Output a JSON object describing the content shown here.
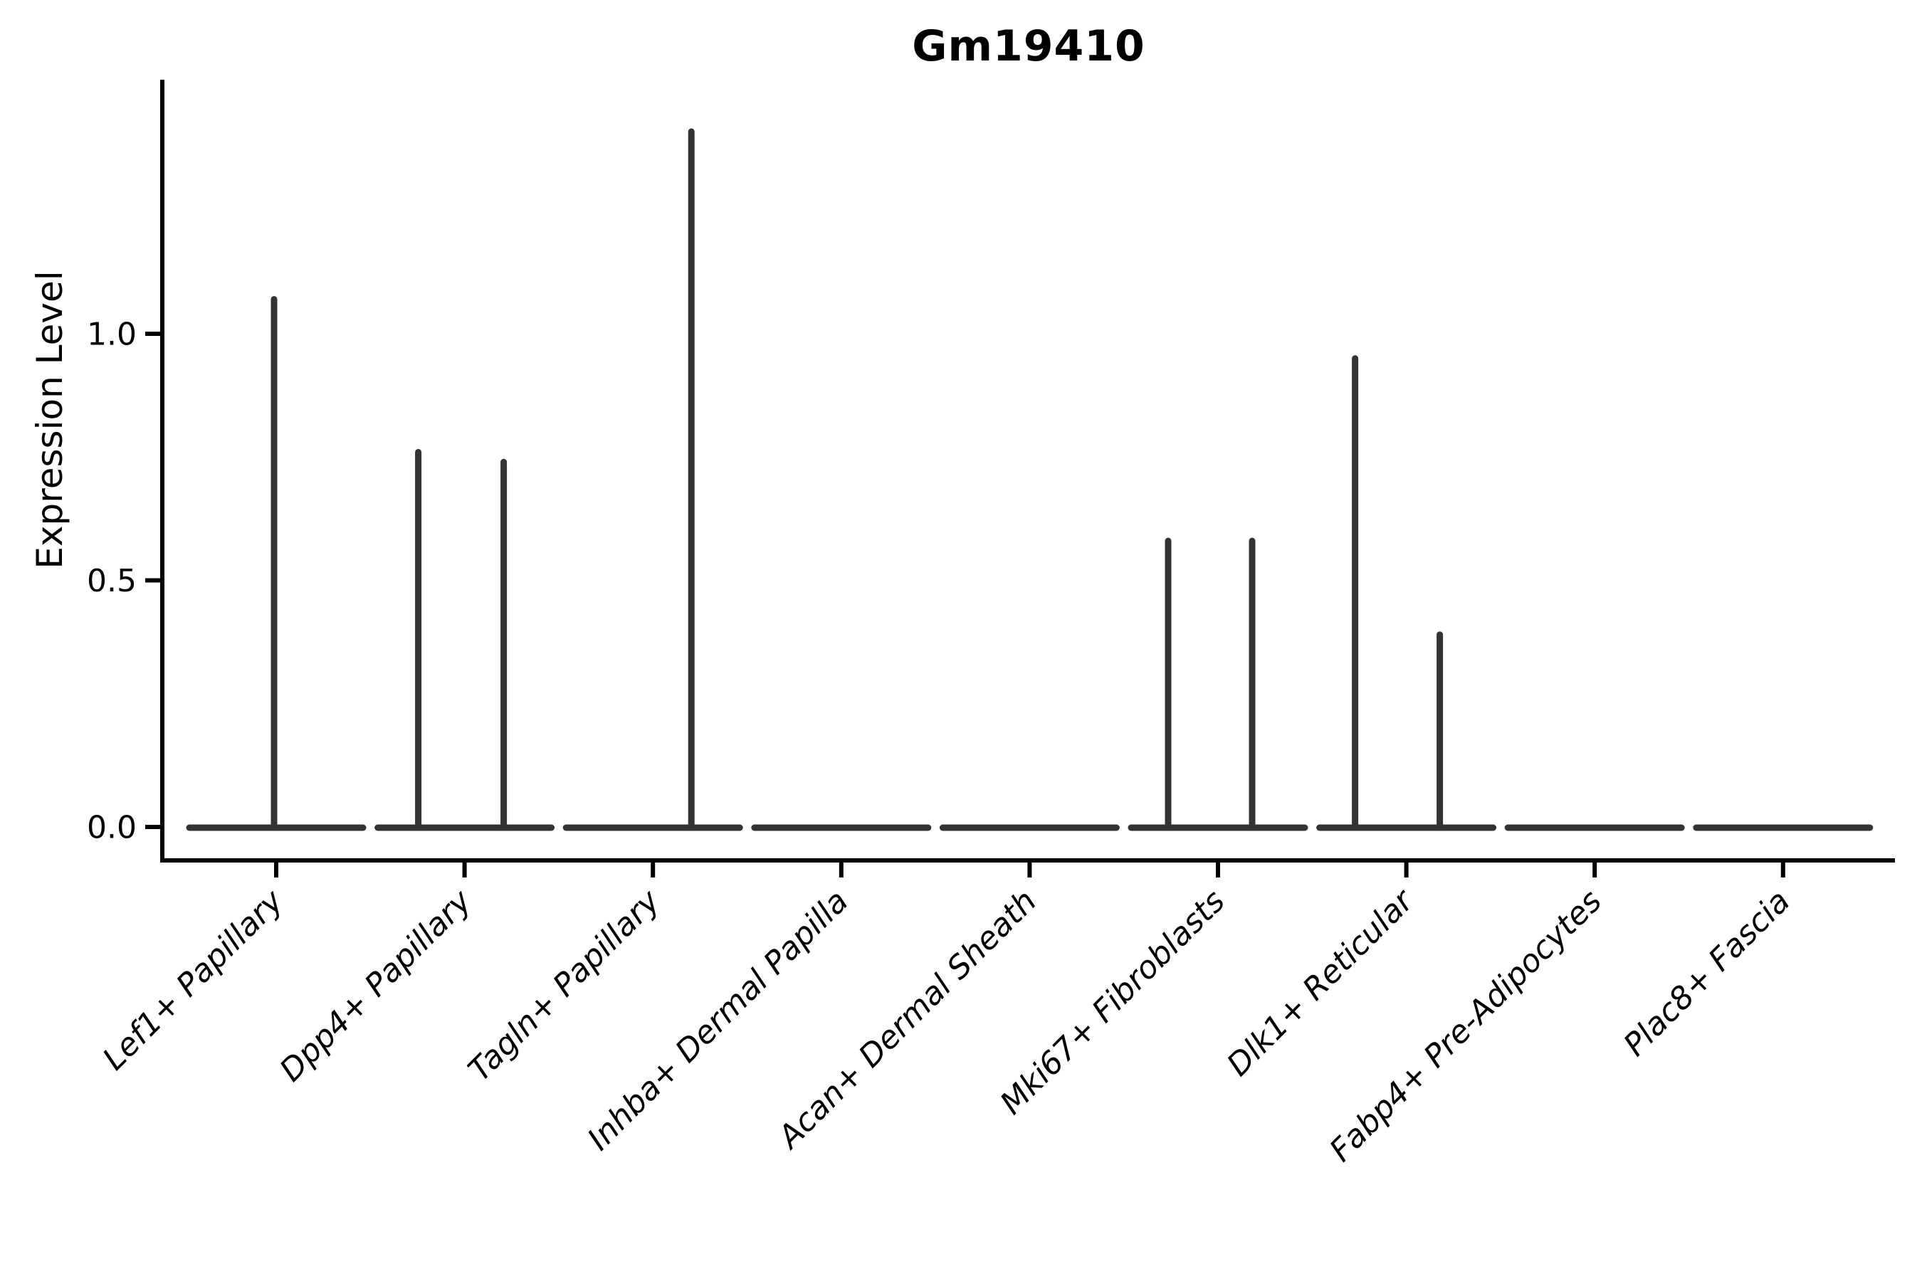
{
  "chart_data": {
    "type": "violin",
    "title": "Gm19410",
    "ylabel": "Expression Level",
    "xlabel": "",
    "grid": false,
    "legend": "none",
    "ylim": [
      -0.07,
      1.52
    ],
    "yticks": [
      {
        "label": "0.0",
        "value": 0.0
      },
      {
        "label": "0.5",
        "value": 0.5
      },
      {
        "label": "1.0",
        "value": 1.0
      }
    ],
    "categories": [
      "Lef1+ Papillary",
      "Dpp4+ Papillary",
      "Tagln+ Papillary",
      "Inhba+ Dermal Papilla",
      "Acan+ Dermal Sheath",
      "Mki67+ Fibroblasts",
      "Dlk1+ Reticular",
      "Fabp4+ Pre-Adipocytes",
      "Plac8+ Fascia"
    ],
    "violins": [
      {
        "label": "Lef1+ Papillary",
        "spikes": [
          {
            "value": 1.07,
            "offset": -3
          }
        ]
      },
      {
        "label": "Dpp4+ Papillary",
        "spikes": [
          {
            "value": 0.76,
            "offset": -65
          },
          {
            "value": 0.74,
            "offset": 55
          }
        ]
      },
      {
        "label": "Tagln+ Papillary",
        "spikes": [
          {
            "value": 1.41,
            "offset": 54
          }
        ]
      },
      {
        "label": "Inhba+ Dermal Papilla",
        "spikes": []
      },
      {
        "label": "Acan+ Dermal Sheath",
        "spikes": []
      },
      {
        "label": "Mki67+ Fibroblasts",
        "spikes": [
          {
            "value": 0.58,
            "offset": -70
          },
          {
            "value": 0.58,
            "offset": 48
          }
        ]
      },
      {
        "label": "Dlk1+ Reticular",
        "spikes": [
          {
            "value": 0.95,
            "offset": -72
          },
          {
            "value": 0.39,
            "offset": 47
          }
        ]
      },
      {
        "label": "Fabp4+ Pre-Adipocytes",
        "spikes": []
      },
      {
        "label": "Plac8+ Fascia",
        "spikes": []
      }
    ],
    "colors": {
      "background": "#ffffff",
      "axis": "#000000",
      "text": "#000000",
      "violin_stroke": "#333333"
    }
  }
}
